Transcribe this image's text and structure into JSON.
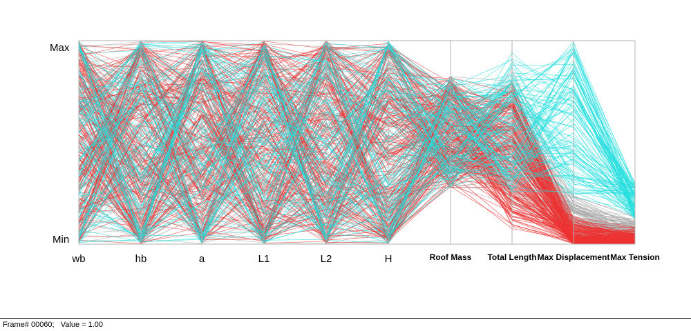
{
  "chart_data": {
    "type": "parallel-coordinates",
    "axes": [
      {
        "name": "wb"
      },
      {
        "name": "hb"
      },
      {
        "name": "a"
      },
      {
        "name": "L1"
      },
      {
        "name": "L2"
      },
      {
        "name": "H"
      },
      {
        "name": "Roof Mass"
      },
      {
        "name": "Total Length"
      },
      {
        "name": "Max Displacement"
      },
      {
        "name": "Max Tension"
      }
    ],
    "range_labels": {
      "max": "Max",
      "min": "Min"
    },
    "line_colors": {
      "low": "#ee3333",
      "mid": "#aaaaaa",
      "high": "#22dddd"
    },
    "sample_count": 400,
    "value_scale": "normalized 0 (Min) to 1 (Max)",
    "grid": false,
    "legend": "none"
  },
  "status": {
    "text": "Frame# 00060;   Value = 1.00"
  }
}
